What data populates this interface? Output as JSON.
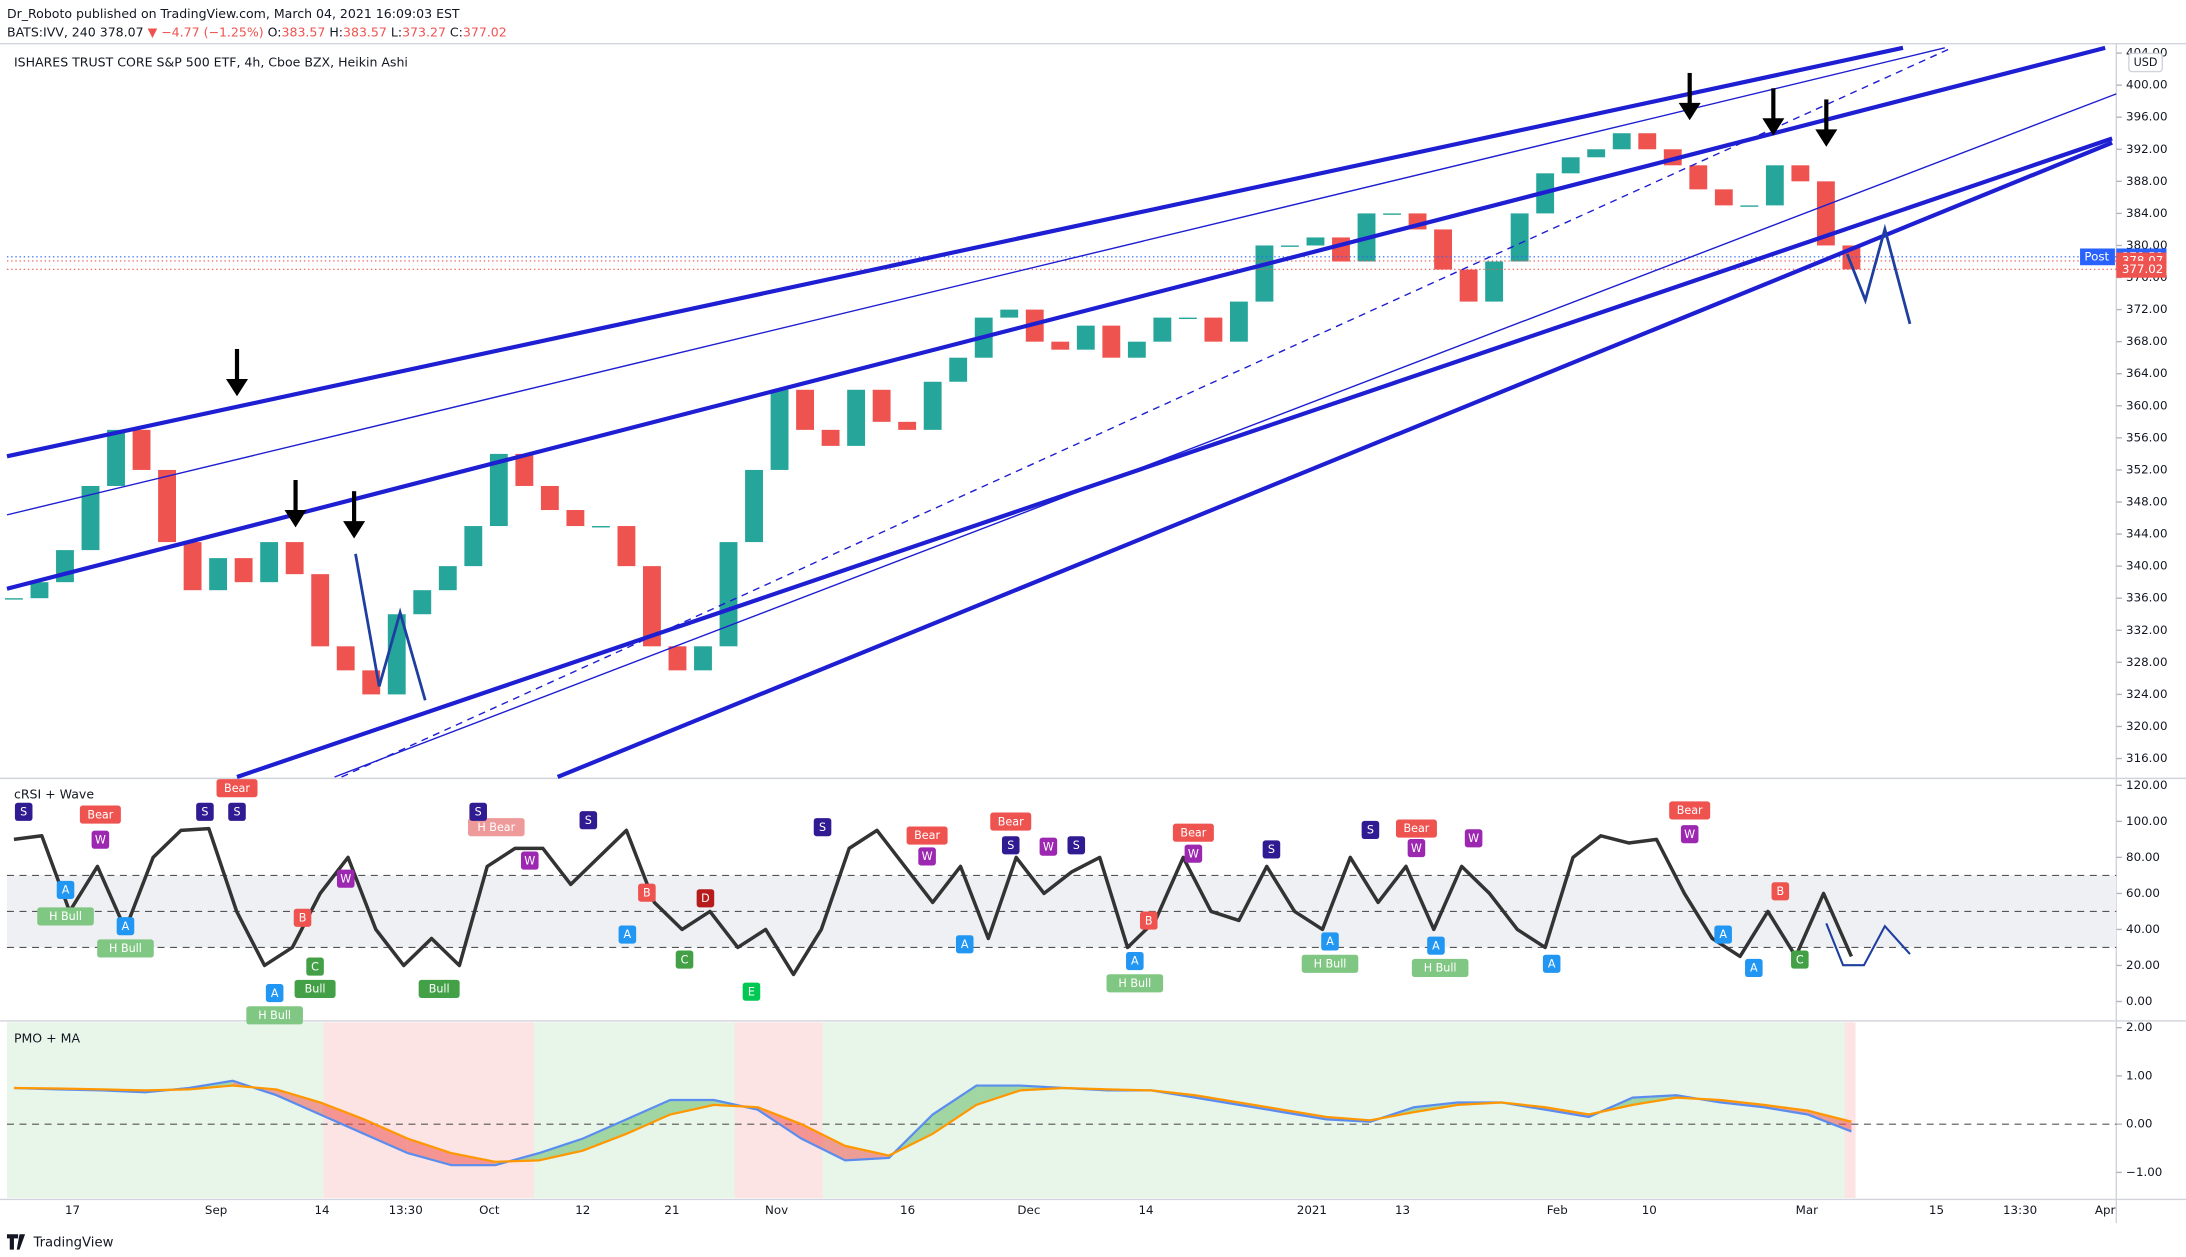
{
  "header": {
    "author_line": "Dr_Roboto published on TradingView.com, March 04, 2021 16:09:03 EST",
    "symbol": "BATS:IVV, 240",
    "last": "378.07",
    "change": "▼ −4.77 (−1.25%)",
    "o_label": "O:",
    "o": "383.57",
    "h_label": "H:",
    "h": "383.57",
    "l_label": "L:",
    "l": "373.27",
    "c_label": "C:",
    "c": "377.02"
  },
  "x_labels": [
    "17",
    "Sep",
    "14",
    "13:30",
    "Oct",
    "12",
    "21",
    "Nov",
    "16",
    "Dec",
    "14",
    "2021",
    "13",
    "Feb",
    "10",
    "Mar",
    "15",
    "13:30",
    "Apr"
  ],
  "footer": {
    "brand": "TradingView"
  },
  "chart_data": [
    {
      "type": "candlestick",
      "title": "ISHARES TRUST CORE S&P 500 ETF, 4h, Cboe BZX, Heikin Ashi",
      "currency": "USD",
      "up_color": "#26a69a",
      "down_color": "#ef5350",
      "close": [
        336,
        338,
        342,
        350,
        357,
        352,
        343,
        337,
        341,
        338,
        343,
        339,
        330,
        327,
        324,
        334,
        337,
        340,
        345,
        354,
        350,
        347,
        345,
        345,
        340,
        330,
        327,
        330,
        343,
        352,
        362,
        357,
        355,
        362,
        358,
        357,
        363,
        366,
        371,
        372,
        368,
        367,
        370,
        366,
        368,
        371,
        371,
        368,
        373,
        380,
        380,
        381,
        378,
        384,
        384,
        382,
        377,
        373,
        378,
        384,
        389,
        391,
        392,
        394,
        392,
        390,
        387,
        385,
        385,
        390,
        388,
        380,
        377.02
      ],
      "ylim": [
        313.7,
        405
      ],
      "yticks": [
        {
          "value": 316,
          "label": "316.00"
        },
        {
          "value": 320,
          "label": "320.00"
        },
        {
          "value": 324,
          "label": "324.00"
        },
        {
          "value": 328,
          "label": "328.00"
        },
        {
          "value": 332,
          "label": "332.00"
        },
        {
          "value": 336,
          "label": "336.00"
        },
        {
          "value": 340,
          "label": "340.00"
        },
        {
          "value": 344,
          "label": "344.00"
        },
        {
          "value": 348,
          "label": "348.00"
        },
        {
          "value": 352,
          "label": "352.00"
        },
        {
          "value": 356,
          "label": "356.00"
        },
        {
          "value": 360,
          "label": "360.00"
        },
        {
          "value": 364,
          "label": "364.00"
        },
        {
          "value": 368,
          "label": "368.00"
        },
        {
          "value": 372,
          "label": "372.00"
        },
        {
          "value": 376,
          "label": "376.00"
        },
        {
          "value": 380,
          "label": "380.00"
        },
        {
          "value": 384,
          "label": "384.00"
        },
        {
          "value": 388,
          "label": "388.00"
        },
        {
          "value": 392,
          "label": "392.00"
        },
        {
          "value": 396,
          "label": "396.00"
        },
        {
          "value": 400,
          "label": "400.00"
        },
        {
          "value": 404,
          "label": "404.00"
        }
      ],
      "price_tags": [
        {
          "name": "Post",
          "value": 378.58,
          "color": "#2962ff"
        },
        {
          "value": 378.07,
          "color": "#ef5350"
        },
        {
          "value": 377.02,
          "color": "#ef5350"
        }
      ]
    },
    {
      "type": "line",
      "title": "cRSI + Wave",
      "color": "#333333",
      "values": [
        90,
        92,
        50,
        75,
        40,
        80,
        95,
        96,
        50,
        20,
        30,
        60,
        80,
        40,
        20,
        35,
        20,
        75,
        85,
        85,
        65,
        80,
        95,
        55,
        40,
        50,
        30,
        40,
        15,
        40,
        85,
        95,
        75,
        55,
        75,
        35,
        80,
        60,
        72,
        80,
        30,
        45,
        80,
        50,
        45,
        75,
        50,
        40,
        80,
        55,
        75,
        40,
        75,
        60,
        40,
        30,
        80,
        92,
        88,
        90,
        60,
        35,
        25,
        50,
        25,
        60,
        25
      ],
      "levels": [
        30,
        50,
        70
      ],
      "ylim": [
        -10.8,
        123.1
      ],
      "yticks": [
        {
          "value": 0,
          "label": "0.00"
        },
        {
          "value": 20,
          "label": "20.00"
        },
        {
          "value": 40,
          "label": "40.00"
        },
        {
          "value": 60,
          "label": "60.00"
        },
        {
          "value": 80,
          "label": "80.00"
        },
        {
          "value": 100,
          "label": "100.00"
        },
        {
          "value": 120,
          "label": "120.00"
        }
      ],
      "signals": [
        {
          "text": "S",
          "color": "#311b92"
        },
        {
          "text": "Bear",
          "color": "#ef5350"
        },
        {
          "text": "W",
          "color": "#9c27b0"
        },
        {
          "text": "A",
          "color": "#2196f3"
        },
        {
          "text": "H Bull",
          "color": "#81c784"
        },
        {
          "text": "A",
          "color": "#2196f3"
        },
        {
          "text": "H Bull",
          "color": "#81c784"
        },
        {
          "text": "S",
          "color": "#311b92"
        },
        {
          "text": "S",
          "color": "#311b92"
        },
        {
          "text": "Bear",
          "color": "#ef5350"
        },
        {
          "text": "A",
          "color": "#2196f3"
        },
        {
          "text": "H Bull",
          "color": "#81c784"
        },
        {
          "text": "B",
          "color": "#ef5350"
        },
        {
          "text": "C",
          "color": "#43a047"
        },
        {
          "text": "Bull",
          "color": "#43a047"
        },
        {
          "text": "W",
          "color": "#9c27b0"
        },
        {
          "text": "Bull",
          "color": "#43a047"
        },
        {
          "text": "H Bear",
          "color": "#ef9a9a"
        },
        {
          "text": "S",
          "color": "#311b92"
        },
        {
          "text": "W",
          "color": "#9c27b0"
        },
        {
          "text": "S",
          "color": "#311b92"
        },
        {
          "text": "A",
          "color": "#2196f3"
        },
        {
          "text": "B",
          "color": "#ef5350"
        },
        {
          "text": "C",
          "color": "#43a047"
        },
        {
          "text": "D",
          "color": "#b71c1c"
        },
        {
          "text": "E",
          "color": "#00c853"
        },
        {
          "text": "S",
          "color": "#311b92"
        },
        {
          "text": "Bear",
          "color": "#ef5350"
        },
        {
          "text": "W",
          "color": "#9c27b0"
        },
        {
          "text": "A",
          "color": "#2196f3"
        },
        {
          "text": "Bear",
          "color": "#ef5350"
        },
        {
          "text": "S",
          "color": "#311b92"
        },
        {
          "text": "W",
          "color": "#9c27b0"
        },
        {
          "text": "S",
          "color": "#311b92"
        },
        {
          "text": "B",
          "color": "#ef5350"
        },
        {
          "text": "A",
          "color": "#2196f3"
        },
        {
          "text": "H Bull",
          "color": "#81c784"
        },
        {
          "text": "Bear",
          "color": "#ef5350"
        },
        {
          "text": "W",
          "color": "#9c27b0"
        },
        {
          "text": "S",
          "color": "#311b92"
        },
        {
          "text": "A",
          "color": "#2196f3"
        },
        {
          "text": "H Bull",
          "color": "#81c784"
        },
        {
          "text": "S",
          "color": "#311b92"
        },
        {
          "text": "Bear",
          "color": "#ef5350"
        },
        {
          "text": "W",
          "color": "#9c27b0"
        },
        {
          "text": "A",
          "color": "#2196f3"
        },
        {
          "text": "H Bull",
          "color": "#81c784"
        },
        {
          "text": "W",
          "color": "#9c27b0"
        },
        {
          "text": "A",
          "color": "#2196f3"
        },
        {
          "text": "Bear",
          "color": "#ef5350"
        },
        {
          "text": "W",
          "color": "#9c27b0"
        },
        {
          "text": "A",
          "color": "#2196f3"
        },
        {
          "text": "A",
          "color": "#2196f3"
        },
        {
          "text": "B",
          "color": "#ef5350"
        },
        {
          "text": "C",
          "color": "#43a047"
        }
      ]
    },
    {
      "type": "line",
      "title": "PMO + MA",
      "series": [
        {
          "color": "#5b8def",
          "values": [
            0.75,
            0.72,
            0.7,
            0.66,
            0.75,
            0.9,
            0.6,
            0.2,
            -0.2,
            -0.6,
            -0.85,
            -0.85,
            -0.6,
            -0.3,
            0.1,
            0.5,
            0.5,
            0.3,
            -0.3,
            -0.75,
            -0.7,
            0.2,
            0.8,
            0.8,
            0.75,
            0.7,
            0.7,
            0.55,
            0.4,
            0.25,
            0.1,
            0.05,
            0.35,
            0.45,
            0.45,
            0.3,
            0.15,
            0.55,
            0.6,
            0.45,
            0.35,
            0.2,
            -0.15
          ]
        },
        {
          "color": "#ff9800",
          "values": [
            0.75,
            0.74,
            0.72,
            0.7,
            0.72,
            0.8,
            0.72,
            0.45,
            0.1,
            -0.3,
            -0.6,
            -0.78,
            -0.75,
            -0.55,
            -0.2,
            0.2,
            0.4,
            0.35,
            0.0,
            -0.45,
            -0.65,
            -0.2,
            0.4,
            0.7,
            0.75,
            0.72,
            0.7,
            0.6,
            0.45,
            0.3,
            0.15,
            0.08,
            0.25,
            0.4,
            0.45,
            0.35,
            0.2,
            0.4,
            0.55,
            0.5,
            0.4,
            0.28,
            0.05
          ]
        }
      ],
      "zero_line": 0,
      "ylim": [
        -1.53,
        2.11
      ],
      "yticks": [
        {
          "value": -1,
          "label": "−1.00"
        },
        {
          "value": 0,
          "label": "0.00"
        },
        {
          "value": 1,
          "label": "1.00"
        },
        {
          "value": 2,
          "label": "2.00"
        }
      ]
    }
  ]
}
